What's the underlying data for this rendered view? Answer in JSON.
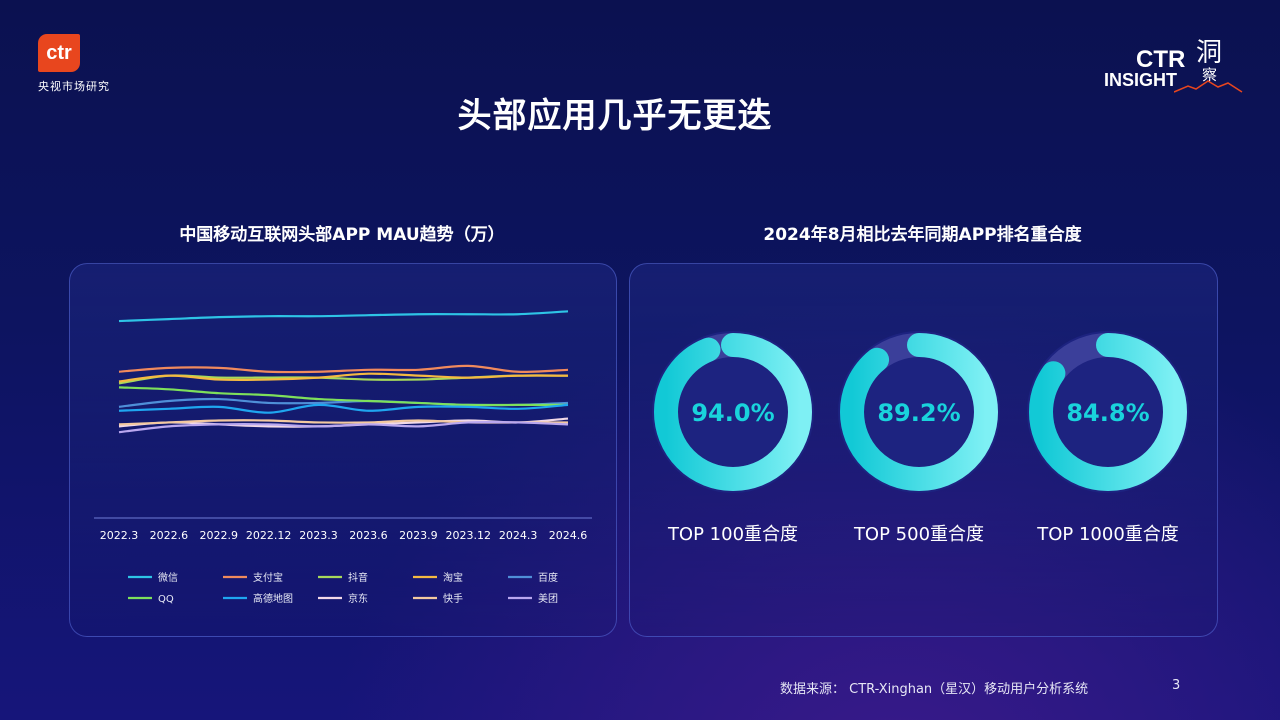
{
  "brand": {
    "ctr_logo": "ctr",
    "ctr_sub": "央视市场研究",
    "insight_ctr": "CTR",
    "insight_word": "INSIGHT",
    "insight_cn_1": "洞",
    "insight_cn_2": "察"
  },
  "page": {
    "title": "头部应用几乎无更迭",
    "page_number": "3"
  },
  "footer": {
    "source": "数据来源：  CTR-Xinghan（星汉）移动用户分析系统"
  },
  "chart_data": [
    {
      "type": "line",
      "title": "中国移动互联网头部APP MAU趋势（万）",
      "x": [
        "2022.3",
        "2022.6",
        "2022.9",
        "2022.12",
        "2023.3",
        "2023.6",
        "2023.9",
        "2023.12",
        "2024.3",
        "2024.6"
      ],
      "ylim": [
        0,
        120
      ],
      "grid": false,
      "legend_position": "bottom",
      "series": [
        {
          "name": "微信",
          "color": "#2ec4e6",
          "values": [
            101,
            102,
            103,
            103.5,
            103.5,
            104,
            104.5,
            104.5,
            104.5,
            106
          ]
        },
        {
          "name": "支付宝",
          "color": "#f08a5d",
          "values": [
            75,
            77,
            77,
            75,
            75,
            76,
            76,
            78,
            75,
            76
          ]
        },
        {
          "name": "抖音",
          "color": "#a7d95b",
          "values": [
            69,
            73,
            72,
            72,
            72,
            71,
            71,
            72,
            73,
            73
          ]
        },
        {
          "name": "淘宝",
          "color": "#f4b942",
          "values": [
            70,
            73,
            71,
            71,
            72,
            74,
            73,
            72,
            73,
            73
          ]
        },
        {
          "name": "百度",
          "color": "#4f8fd8",
          "values": [
            57,
            60,
            61,
            59,
            59,
            60,
            59,
            58,
            58,
            59
          ]
        },
        {
          "name": "QQ",
          "color": "#7ee05b",
          "values": [
            67,
            66,
            64,
            63,
            61,
            60,
            59,
            58,
            58,
            58
          ]
        },
        {
          "name": "高德地图",
          "color": "#1fa6f0",
          "values": [
            55,
            56,
            57,
            54,
            58,
            55,
            57,
            57,
            56,
            58
          ]
        },
        {
          "name": "京东",
          "color": "#f2d9e8",
          "values": [
            47,
            49,
            48,
            47,
            47,
            48,
            49,
            50,
            49,
            51
          ]
        },
        {
          "name": "快手",
          "color": "#f3c9a0",
          "values": [
            48,
            49,
            50,
            50,
            49,
            49,
            50,
            49,
            49,
            49
          ]
        },
        {
          "name": "美团",
          "color": "#b9a7ef",
          "values": [
            44,
            47,
            48,
            48,
            47,
            48,
            47,
            49,
            49,
            48
          ]
        }
      ]
    },
    {
      "type": "pie",
      "title": "2024年8月相比去年同期APP排名重合度",
      "categories": [
        "TOP 100重合度",
        "TOP 500重合度",
        "TOP 1000重合度"
      ],
      "values": [
        94.0,
        89.2,
        84.8
      ],
      "value_labels": [
        "94.0%",
        "89.2%",
        "84.8%"
      ]
    }
  ]
}
